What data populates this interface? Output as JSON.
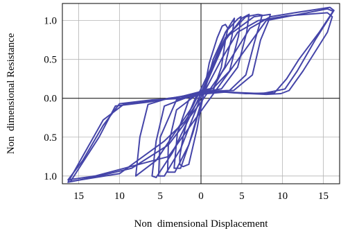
{
  "chart_data": {
    "type": "line",
    "title": "",
    "xlabel": "Non  dimensional Displacement",
    "ylabel": "Non  dimensional Resistance",
    "xlim": [
      -17,
      17
    ],
    "ylim": [
      -1.1,
      1.22
    ],
    "x_ticks": [
      {
        "value": -15,
        "label": "15"
      },
      {
        "value": -10,
        "label": "10"
      },
      {
        "value": -5,
        "label": "5"
      },
      {
        "value": 0,
        "label": "0"
      },
      {
        "value": 5,
        "label": "5"
      },
      {
        "value": 10,
        "label": "10"
      },
      {
        "value": 15,
        "label": "15"
      }
    ],
    "y_ticks": [
      {
        "value": 1.0,
        "label": "1.0"
      },
      {
        "value": 0.5,
        "label": "0.5"
      },
      {
        "value": 0.0,
        "label": "0.0"
      },
      {
        "value": -0.5,
        "label": "0.5"
      },
      {
        "value": -1.0,
        "label": "1.0"
      }
    ],
    "grid": true,
    "series_color": "#4444a8",
    "series": [
      {
        "x": [
          -1.5,
          -0.5,
          1.0,
          2.0,
          2.6,
          3.0,
          3.3,
          3.0,
          2.5,
          1.5,
          0.3,
          -0.5,
          -1.5,
          -2.2,
          -2.6,
          -2.6,
          -2.2,
          -1.5
        ],
        "y": [
          -0.85,
          -0.4,
          0.45,
          0.78,
          0.93,
          0.95,
          0.9,
          0.75,
          0.4,
          0.1,
          0.08,
          0.05,
          -0.2,
          -0.5,
          -0.75,
          -0.85,
          -0.88,
          -0.85
        ]
      },
      {
        "x": [
          -2.5,
          -1.0,
          1.5,
          3.0,
          3.9,
          4.1,
          3.8,
          2.9,
          1.5,
          0.0,
          -1.5,
          -2.9,
          -3.3,
          -2.5
        ],
        "y": [
          -0.9,
          -0.45,
          0.5,
          0.85,
          1.0,
          1.03,
          0.8,
          0.4,
          0.13,
          0.1,
          -0.02,
          -0.45,
          -0.9,
          -0.9
        ]
      },
      {
        "x": [
          -3.2,
          -1.5,
          1.0,
          3.0,
          4.5,
          4.9,
          4.6,
          3.5,
          1.5,
          -0.5,
          -3.0,
          -4.0,
          -4.1,
          -3.2
        ],
        "y": [
          -0.95,
          -0.6,
          0.3,
          0.85,
          1.02,
          1.05,
          0.8,
          0.35,
          0.13,
          0.05,
          -0.15,
          -0.6,
          -0.95,
          -0.95
        ]
      },
      {
        "x": [
          -4.5,
          -2.5,
          0.5,
          3.0,
          5.0,
          5.9,
          5.6,
          4.5,
          2.5,
          0.0,
          -3.0,
          -5.0,
          -5.2,
          -4.5
        ],
        "y": [
          -1.0,
          -0.65,
          0.15,
          0.75,
          1.03,
          1.08,
          0.85,
          0.4,
          0.12,
          0.08,
          -0.02,
          -0.5,
          -1.0,
          -1.0
        ]
      },
      {
        "x": [
          -5.5,
          -3.5,
          -0.5,
          3.0,
          5.5,
          7.0,
          7.5,
          6.5,
          5.5,
          3.5,
          1.0,
          -2.0,
          -4.5,
          -5.5,
          -6.0,
          -5.5
        ],
        "y": [
          -1.02,
          -0.7,
          -0.05,
          0.78,
          1.05,
          1.08,
          1.07,
          0.7,
          0.3,
          0.1,
          0.09,
          0.0,
          -0.1,
          -0.55,
          -1.0,
          -1.02
        ]
      },
      {
        "x": [
          -8.0,
          -5.5,
          -1.0,
          3.0,
          6.5,
          8.5,
          8.3,
          7.3,
          6.3,
          4.0,
          1.5,
          -1.5,
          -4.0,
          -6.5,
          -7.5,
          -8.0
        ],
        "y": [
          -1.0,
          -0.8,
          -0.1,
          0.78,
          1.05,
          1.08,
          1.0,
          0.75,
          0.3,
          0.1,
          0.09,
          0.03,
          0.0,
          -0.08,
          -0.5,
          -1.0
        ]
      },
      {
        "x": [
          -16.3,
          -13.0,
          -4.0,
          2.5,
          8.0,
          12.0,
          15.5,
          16.2,
          14.5,
          12.0,
          10.5,
          9.0,
          5.5,
          2.0,
          -2.0,
          -6.0,
          -10.0,
          -12.0,
          -14.5,
          -16.3
        ],
        "y": [
          -1.05,
          -1.0,
          -0.75,
          0.2,
          1.0,
          1.08,
          1.15,
          1.12,
          0.85,
          0.5,
          0.25,
          0.07,
          0.06,
          0.09,
          0.0,
          -0.02,
          -0.07,
          -0.35,
          -0.8,
          -1.05
        ]
      },
      {
        "x": [
          -16.0,
          -10.0,
          -4.5,
          -2.0,
          0.5,
          2.5,
          4.5,
          7.0,
          10.5,
          15.5,
          16.1,
          15.5,
          12.5,
          10.8,
          9.8,
          8.0,
          4.0,
          0.5,
          -2.5,
          -6.5,
          -10.5,
          -12.5,
          -16.0
        ],
        "y": [
          -1.07,
          -0.97,
          -0.55,
          -0.3,
          0.1,
          0.5,
          0.85,
          1.0,
          1.06,
          1.1,
          1.05,
          0.85,
          0.35,
          0.1,
          0.06,
          0.05,
          0.07,
          0.1,
          0.02,
          -0.05,
          -0.1,
          -0.5,
          -1.07
        ]
      },
      {
        "x": [
          -16.3,
          -12.5,
          -8.5,
          -4.0,
          0.0,
          3.0,
          6.0,
          8.5,
          11.5,
          15.8,
          16.3,
          14.0,
          11.8,
          10.3,
          7.5,
          3.0,
          -1.5,
          -5.5,
          -9.5,
          -12.0,
          -16.3
        ],
        "y": [
          -1.08,
          -1.0,
          -0.9,
          -0.6,
          -0.05,
          0.4,
          0.9,
          1.05,
          1.1,
          1.17,
          1.13,
          0.75,
          0.35,
          0.12,
          0.06,
          0.08,
          0.04,
          -0.03,
          -0.08,
          -0.28,
          -1.08
        ]
      }
    ]
  }
}
